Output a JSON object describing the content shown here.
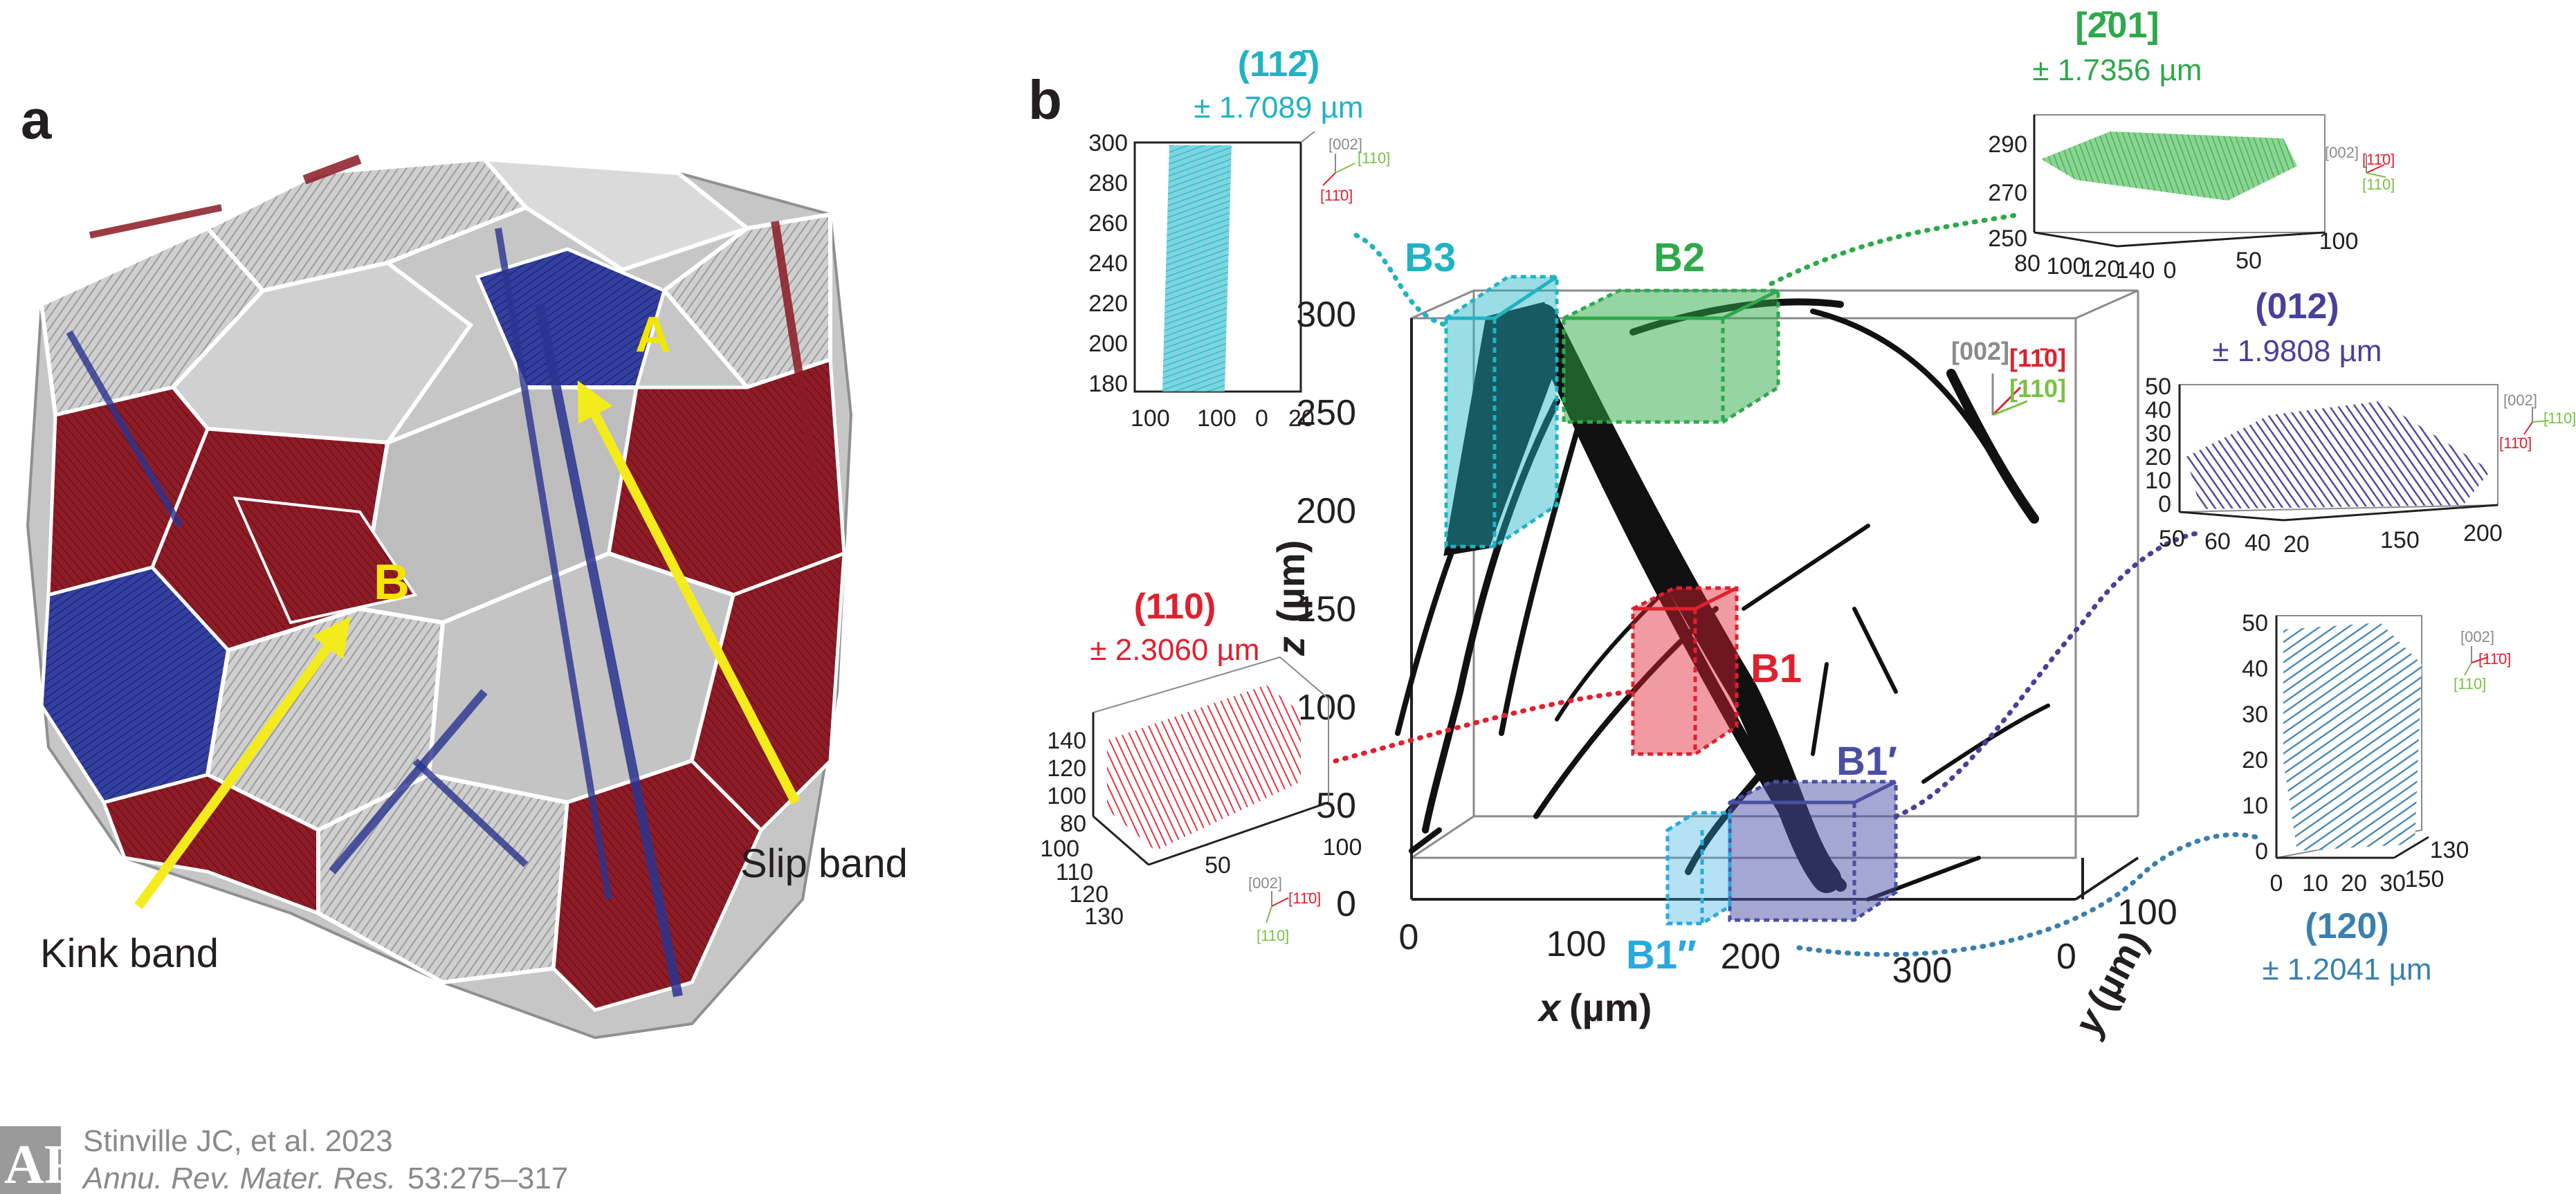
{
  "panel_a": {
    "label": "a",
    "marker_a": "A",
    "marker_b": "B",
    "kink_band": "Kink band",
    "slip_band": "Slip band",
    "colors": {
      "red": "#8b1a24",
      "blue": "#2b3490",
      "gray": "#b9b9b9",
      "arrow": "#f4eb1c"
    }
  },
  "panel_b": {
    "label": "b",
    "main_plot": {
      "x_title": "x",
      "x_unit": "(µm)",
      "y_title": "y",
      "y_unit": "(µm)",
      "z_title": "z",
      "z_unit": "(µm)",
      "x_ticks": [
        "0",
        "100",
        "200",
        "300"
      ],
      "y_ticks": [
        "0",
        "100"
      ],
      "z_ticks": [
        "0",
        "50",
        "100",
        "150",
        "200",
        "250",
        "300"
      ],
      "triad": {
        "a": "[002]",
        "b": "[11̄0]",
        "c": "[110]"
      },
      "boxes": [
        {
          "name": "B3",
          "color": "#1fb3c4"
        },
        {
          "name": "B2",
          "color": "#2ea94a"
        },
        {
          "name": "B1",
          "color": "#e0202e"
        },
        {
          "name": "B1′",
          "color": "#4a4fa3"
        },
        {
          "name": "B1″",
          "color": "#28a9e0"
        }
      ]
    },
    "insets": {
      "b3": {
        "plane": "(112̄)",
        "sub": "± 1.7089 µm",
        "color": "#1fb3c4",
        "z_ticks": [
          "300",
          "280",
          "260",
          "240",
          "220",
          "200",
          "180"
        ],
        "x_ticks": [
          "100",
          "100",
          "0",
          "20"
        ],
        "triad": {
          "a": "[002]",
          "b": "[110]",
          "c": "[11̄0]"
        }
      },
      "b2": {
        "plane": "[2̄01]",
        "sub": "± 1.7356 µm",
        "color": "#2ea94a",
        "z_ticks": [
          "290",
          "270",
          "250"
        ],
        "x_ticks": [
          "80",
          "100",
          "120",
          "140",
          "0",
          "50",
          "100"
        ],
        "triad": {
          "a": "[002]",
          "b": "[11̄0]",
          "c": "[110]"
        }
      },
      "b1p": {
        "plane": "(012)",
        "sub": "± 1.9808 µm",
        "color": "#4a3f9b",
        "z_ticks": [
          "50",
          "40",
          "30",
          "20",
          "10",
          "0"
        ],
        "x_ticks": [
          "50",
          "60",
          "40",
          "20",
          "150",
          "200"
        ],
        "triad": {
          "a": "[002]",
          "b": "[11̄0]",
          "c": "[110]"
        }
      },
      "b1": {
        "plane": "(110)",
        "sub": "± 2.3060 µm",
        "color": "#e0202e",
        "z_ticks": [
          "140",
          "120",
          "100",
          "80"
        ],
        "y_ticks": [
          "100",
          "110",
          "120",
          "130"
        ],
        "x_ticks": [
          "50",
          "100"
        ],
        "triad": {
          "a": "[002]",
          "b": "[11̄0]",
          "c": "[110]"
        }
      },
      "b1pp": {
        "plane": "(120)",
        "sub": "± 1.2041 µm",
        "color": "#3a7fb0",
        "z_ticks": [
          "50",
          "40",
          "30",
          "20",
          "10",
          "0"
        ],
        "x_ticks": [
          "0",
          "10",
          "20",
          "30"
        ],
        "y_ticks": [
          "130",
          "150"
        ],
        "triad": {
          "a": "[002]",
          "b": "[11̄0]",
          "c": "[110]"
        }
      }
    }
  },
  "credit": {
    "line1": "Stinville JC, et al. 2023",
    "line2_journal": "Annu. Rev. Mater. Res.",
    "line2_pages": "53:275–317"
  }
}
